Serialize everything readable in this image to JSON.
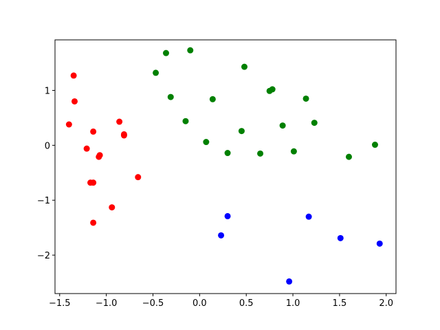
{
  "chart_data": {
    "type": "scatter",
    "series": [
      {
        "color": "#ff0000",
        "x": [
          -1.35,
          -1.34,
          -1.4,
          -1.14,
          -0.86,
          -0.81,
          -0.81,
          -1.21,
          -1.07,
          -1.08,
          -1.17,
          -1.14,
          -0.66,
          -0.94,
          -1.14
        ],
        "values": [
          1.27,
          0.8,
          0.38,
          0.25,
          0.43,
          0.2,
          0.18,
          -0.06,
          -0.18,
          -0.21,
          -0.68,
          -0.68,
          -0.58,
          -1.13,
          -1.41
        ]
      },
      {
        "color": "#008000",
        "x": [
          -0.47,
          -0.36,
          -0.1,
          0.48,
          -0.31,
          0.14,
          -0.15,
          0.07,
          0.3,
          0.45,
          0.65,
          0.75,
          0.78,
          0.89,
          1.01,
          1.14,
          1.23,
          1.6,
          1.88
        ],
        "values": [
          1.32,
          1.68,
          1.73,
          1.43,
          0.88,
          0.84,
          0.44,
          0.06,
          -0.14,
          0.26,
          -0.15,
          0.99,
          1.02,
          0.36,
          -0.11,
          0.85,
          0.41,
          -0.21,
          0.01
        ]
      },
      {
        "color": "#0000ff",
        "x": [
          0.3,
          0.23,
          1.17,
          1.51,
          1.93,
          0.96
        ],
        "values": [
          -1.29,
          -1.64,
          -1.3,
          -1.69,
          -1.79,
          -2.48
        ]
      }
    ],
    "xlim": [
      -1.55,
      2.105
    ],
    "ylim": [
      -2.7,
      1.92
    ],
    "xticks": [
      {
        "value": -1.5,
        "label": "−1.5"
      },
      {
        "value": -1.0,
        "label": "−1.0"
      },
      {
        "value": -0.5,
        "label": "−0.5"
      },
      {
        "value": 0,
        "label": "0.0"
      },
      0.5,
      {
        "value": 1,
        "label": "1.0"
      },
      1.5,
      {
        "value": 2,
        "label": "2.0"
      }
    ],
    "yticks": [
      {
        "value": -2,
        "label": "−2"
      },
      {
        "value": -1,
        "label": "−1"
      },
      0,
      1
    ]
  }
}
